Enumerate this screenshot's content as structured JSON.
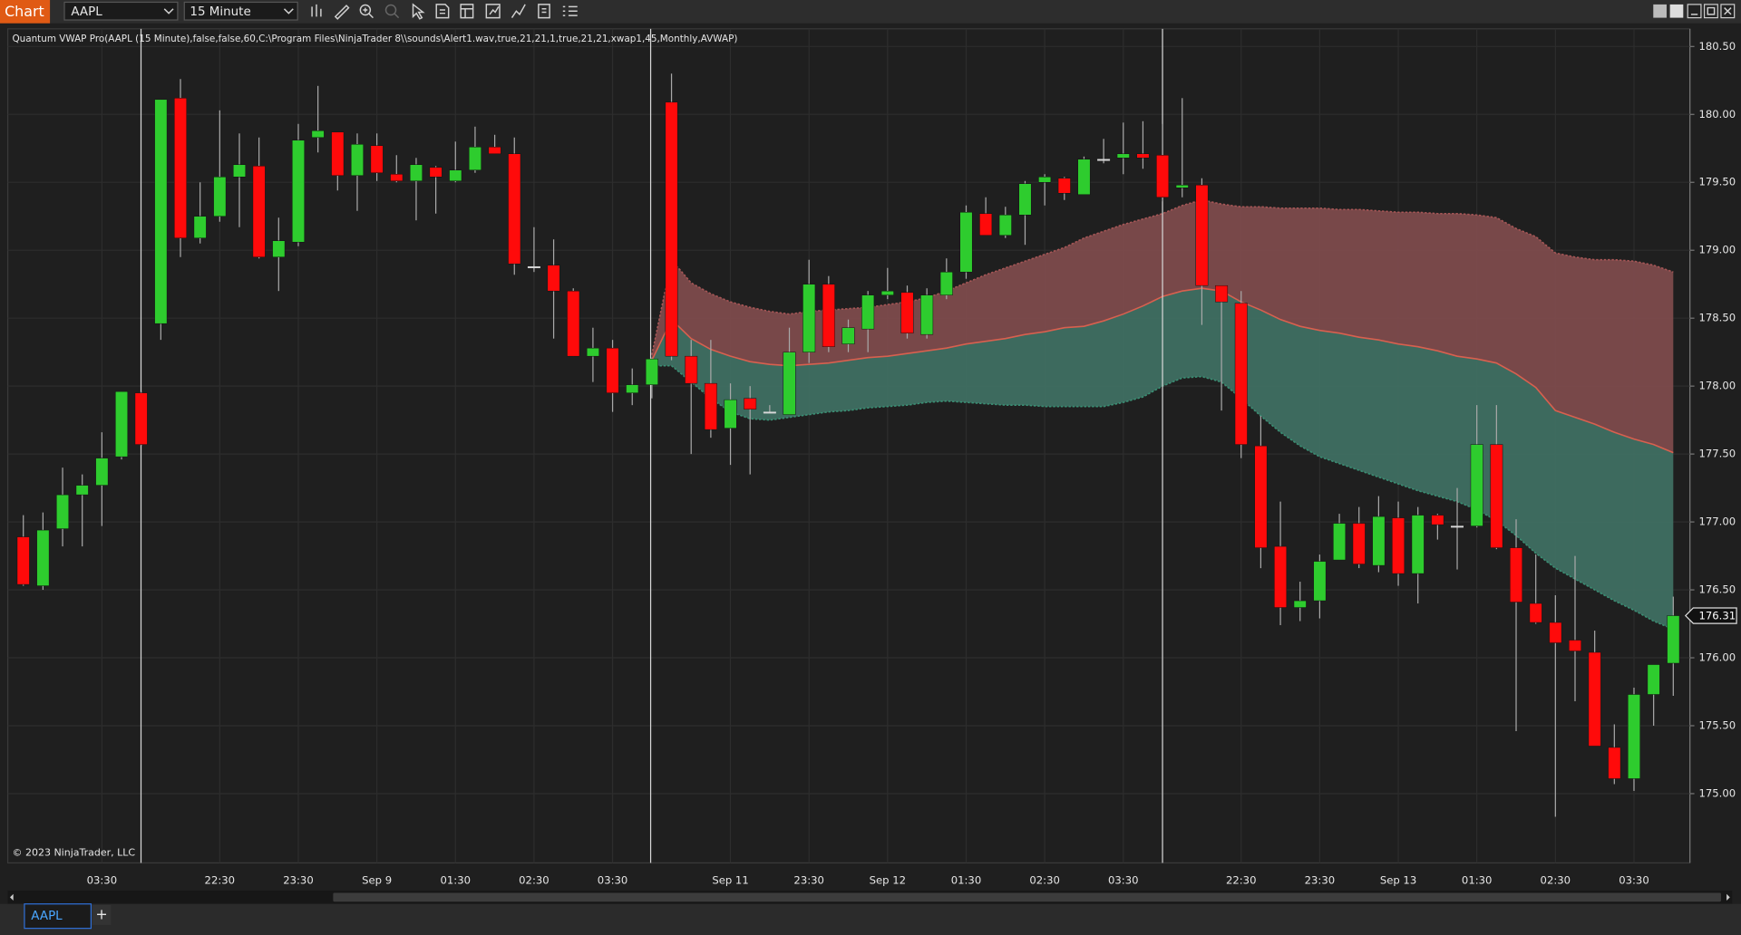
{
  "toolbar": {
    "title": "Chart",
    "instrument": "AAPL",
    "interval": "15 Minute"
  },
  "tabs": {
    "items": [
      "AAPL"
    ],
    "new_tab": "+"
  },
  "chart_data": {
    "type": "candlestick",
    "indicator_label": "Quantum VWAP Pro(AAPL (15 Minute),false,false,60,C:\\Program Files\\NinjaTrader 8\\\\sounds\\Alert1.wav,true,21,21,1,true,21,21,xwap1,45,Monthly,AVWAP)",
    "copyright": "© 2023 NinjaTrader, LLC",
    "categories": [
      null,
      null,
      null,
      null,
      "03:30",
      null,
      null,
      null,
      null,
      null,
      "22:30",
      null,
      null,
      null,
      "23:30",
      null,
      null,
      null,
      "Sep 9",
      null,
      null,
      null,
      "01:30",
      null,
      null,
      null,
      "02:30",
      null,
      null,
      null,
      "03:30",
      null,
      null,
      null,
      null,
      null,
      "Sep 11",
      null,
      null,
      null,
      "23:30",
      null,
      null,
      null,
      "Sep 12",
      null,
      null,
      null,
      "01:30",
      null,
      null,
      null,
      "02:30",
      null,
      null,
      null,
      "03:30",
      null,
      null,
      null,
      null,
      null,
      "22:30",
      null,
      null,
      null,
      "23:30",
      null,
      null,
      null,
      "Sep 13",
      null,
      null,
      null,
      "01:30",
      null,
      null,
      null,
      "02:30",
      null,
      null,
      null,
      "03:30",
      null,
      null
    ],
    "open": [
      176.89,
      176.53,
      176.95,
      177.2,
      177.27,
      177.48,
      177.95,
      178.46,
      180.12,
      179.09,
      179.25,
      179.54,
      179.62,
      178.95,
      179.06,
      179.83,
      179.87,
      179.55,
      179.77,
      179.56,
      179.51,
      179.61,
      179.51,
      179.59,
      179.76,
      179.71,
      178.88,
      178.89,
      178.7,
      178.22,
      178.28,
      177.95,
      178.01,
      180.09,
      178.22,
      178.02,
      177.69,
      177.91,
      177.81,
      177.79,
      178.25,
      178.75,
      178.31,
      178.42,
      178.67,
      178.69,
      178.38,
      178.67,
      178.84,
      179.27,
      179.11,
      179.26,
      179.5,
      179.53,
      179.41,
      179.67,
      179.68,
      179.71,
      179.7,
      179.46,
      179.48,
      178.74,
      178.61,
      177.56,
      176.82,
      176.37,
      176.42,
      176.72,
      176.99,
      176.68,
      177.03,
      176.62,
      177.05,
      176.97,
      176.97,
      177.57,
      176.81,
      176.4,
      176.26,
      176.13,
      176.04,
      175.34,
      175.11,
      175.73,
      175.96
    ],
    "high": [
      177.05,
      177.07,
      177.4,
      177.35,
      177.66,
      177.96,
      177.96,
      180.11,
      180.26,
      179.5,
      180.03,
      179.86,
      179.83,
      179.24,
      179.93,
      180.21,
      179.87,
      179.86,
      179.86,
      179.7,
      179.68,
      179.62,
      179.8,
      179.91,
      179.85,
      179.83,
      179.17,
      179.08,
      178.72,
      178.43,
      178.34,
      178.13,
      178.21,
      180.3,
      178.34,
      178.34,
      178.02,
      178.0,
      177.86,
      178.43,
      178.93,
      178.81,
      178.49,
      178.7,
      178.87,
      178.74,
      178.72,
      178.94,
      179.33,
      179.39,
      179.32,
      179.51,
      179.56,
      179.54,
      179.69,
      179.82,
      179.94,
      179.95,
      179.93,
      180.12,
      179.53,
      178.74,
      178.7,
      177.78,
      177.15,
      176.56,
      176.76,
      177.06,
      177.11,
      177.19,
      177.15,
      177.11,
      177.06,
      177.25,
      177.86,
      177.86,
      177.02,
      176.76,
      176.46,
      176.75,
      176.2,
      175.51,
      175.78,
      175.95,
      176.45
    ],
    "low": [
      176.53,
      176.5,
      176.82,
      176.82,
      176.97,
      177.46,
      177.56,
      178.34,
      178.95,
      179.05,
      179.21,
      179.17,
      178.94,
      178.7,
      179.03,
      179.72,
      179.44,
      179.29,
      179.51,
      179.5,
      179.22,
      179.27,
      179.5,
      179.57,
      179.71,
      178.82,
      178.84,
      178.35,
      178.22,
      178.03,
      177.81,
      177.86,
      177.91,
      178.19,
      177.5,
      177.62,
      177.42,
      177.35,
      177.8,
      177.79,
      178.17,
      178.25,
      178.25,
      178.25,
      178.64,
      178.35,
      178.35,
      178.64,
      178.79,
      179.11,
      179.09,
      179.04,
      179.33,
      179.37,
      179.41,
      179.64,
      179.56,
      179.6,
      179.36,
      179.39,
      178.45,
      177.82,
      177.47,
      176.66,
      176.24,
      176.27,
      176.29,
      176.72,
      176.66,
      176.63,
      176.53,
      176.4,
      176.87,
      176.65,
      176.96,
      176.8,
      175.46,
      176.25,
      174.83,
      175.68,
      175.35,
      175.07,
      175.02,
      175.5,
      175.72
    ],
    "close": [
      176.54,
      176.94,
      177.2,
      177.27,
      177.47,
      177.96,
      177.57,
      180.11,
      179.09,
      179.25,
      179.54,
      179.63,
      178.95,
      179.07,
      179.81,
      179.88,
      179.55,
      179.78,
      179.57,
      179.51,
      179.63,
      179.54,
      179.59,
      179.76,
      179.71,
      178.9,
      178.88,
      178.7,
      178.22,
      178.28,
      177.95,
      178.01,
      178.2,
      178.22,
      178.02,
      177.68,
      177.9,
      177.83,
      177.81,
      178.25,
      178.75,
      178.29,
      178.43,
      178.67,
      178.7,
      178.39,
      178.67,
      178.84,
      179.28,
      179.11,
      179.26,
      179.49,
      179.54,
      179.42,
      179.67,
      179.67,
      179.71,
      179.68,
      179.39,
      179.48,
      178.74,
      178.62,
      177.57,
      176.81,
      176.37,
      176.42,
      176.71,
      176.99,
      176.69,
      177.04,
      176.62,
      177.05,
      176.98,
      176.97,
      177.57,
      176.81,
      176.41,
      176.26,
      176.11,
      176.05,
      175.35,
      175.11,
      175.73,
      175.95,
      176.31
    ],
    "up_color": "#2ecc2e",
    "down_color": "#ff0a0a",
    "flat_color": "#d8d8d8",
    "wick_color": "#a8a8a8",
    "series": [
      {
        "color": "#a65656",
        "fill": "#7d4b4c",
        "values": [
          null,
          null,
          null,
          null,
          null,
          null,
          null,
          null,
          null,
          null,
          null,
          null,
          null,
          null,
          null,
          null,
          null,
          null,
          null,
          null,
          null,
          null,
          null,
          null,
          null,
          null,
          null,
          null,
          null,
          null,
          null,
          null,
          178.23,
          178.93,
          178.76,
          178.68,
          178.62,
          178.58,
          178.55,
          178.53,
          178.55,
          178.56,
          178.57,
          178.58,
          178.6,
          178.62,
          178.65,
          178.7,
          178.76,
          178.82,
          178.87,
          178.92,
          178.97,
          179.02,
          179.09,
          179.14,
          179.19,
          179.23,
          179.27,
          179.33,
          179.37,
          179.34,
          179.32,
          179.32,
          179.31,
          179.31,
          179.31,
          179.3,
          179.3,
          179.29,
          179.28,
          179.28,
          179.27,
          179.27,
          179.26,
          179.24,
          179.16,
          179.1,
          178.98,
          178.95,
          178.93,
          178.93,
          178.92,
          178.89,
          178.84
        ]
      },
      {
        "color": "#d8604f",
        "fill": "#3f6f62",
        "values": [
          null,
          null,
          null,
          null,
          null,
          null,
          null,
          null,
          null,
          null,
          null,
          null,
          null,
          null,
          null,
          null,
          null,
          null,
          null,
          null,
          null,
          null,
          null,
          null,
          null,
          null,
          null,
          null,
          null,
          null,
          null,
          null,
          178.19,
          178.49,
          178.35,
          178.27,
          178.22,
          178.18,
          178.16,
          178.15,
          178.16,
          178.17,
          178.19,
          178.21,
          178.22,
          178.24,
          178.26,
          178.28,
          178.31,
          178.33,
          178.35,
          178.38,
          178.4,
          178.43,
          178.44,
          178.48,
          178.53,
          178.59,
          178.66,
          178.7,
          178.72,
          178.7,
          178.62,
          178.56,
          178.49,
          178.44,
          178.41,
          178.39,
          178.36,
          178.34,
          178.31,
          178.29,
          178.26,
          178.22,
          178.2,
          178.17,
          178.09,
          177.99,
          177.82,
          177.77,
          177.72,
          177.66,
          177.61,
          177.57,
          177.51
        ]
      },
      {
        "color": "#3a8f74",
        "values": [
          null,
          null,
          null,
          null,
          null,
          null,
          null,
          null,
          null,
          null,
          null,
          null,
          null,
          null,
          null,
          null,
          null,
          null,
          null,
          null,
          null,
          null,
          null,
          null,
          null,
          null,
          null,
          null,
          null,
          null,
          null,
          null,
          178.15,
          178.15,
          178.03,
          177.91,
          177.81,
          177.76,
          177.75,
          177.77,
          177.79,
          177.81,
          177.82,
          177.84,
          177.85,
          177.86,
          177.88,
          177.89,
          177.88,
          177.87,
          177.86,
          177.86,
          177.85,
          177.85,
          177.85,
          177.85,
          177.88,
          177.92,
          178.0,
          178.06,
          178.07,
          178.03,
          177.91,
          177.78,
          177.66,
          177.56,
          177.48,
          177.43,
          177.38,
          177.33,
          177.28,
          177.23,
          177.19,
          177.15,
          177.09,
          177.01,
          176.9,
          176.77,
          176.66,
          176.58,
          176.5,
          176.42,
          176.35,
          176.27,
          176.21
        ]
      }
    ],
    "ylim": [
      174.49,
      180.63
    ],
    "yticks": [
      {
        "value": 180.5,
        "label": "180.50"
      },
      {
        "value": 180,
        "label": "180.00"
      },
      {
        "value": 179.5,
        "label": "179.50"
      },
      {
        "value": 179,
        "label": "179.00"
      },
      {
        "value": 178.5,
        "label": "178.50"
      },
      {
        "value": 178,
        "label": "178.00"
      },
      {
        "value": 177.5,
        "label": "177.50"
      },
      {
        "value": 177,
        "label": "177.00"
      },
      {
        "value": 176.5,
        "label": "176.50"
      },
      {
        "value": 176,
        "label": "176.00"
      },
      {
        "value": 175.5,
        "label": "175.50"
      },
      {
        "value": 175,
        "label": "175.00"
      }
    ],
    "last_price": 176.31,
    "grid": true
  }
}
